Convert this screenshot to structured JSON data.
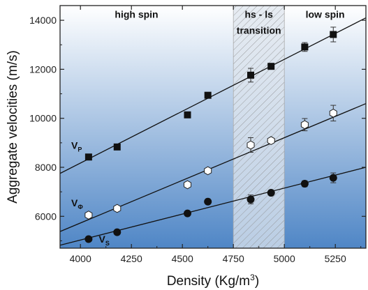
{
  "chart_data": {
    "type": "scatter",
    "xlabel": "Density (Kg/m",
    "xlabel_sup": "3",
    "xlabel_end": ")",
    "ylabel": "Aggregate velocities (m/s)",
    "xlim": [
      3900,
      5400
    ],
    "ylim": [
      4700,
      14600
    ],
    "x_ticks": [
      4000,
      4250,
      4500,
      4750,
      5000,
      5250
    ],
    "y_ticks": [
      6000,
      8000,
      10000,
      12000,
      14000
    ],
    "grid": false,
    "background_gradient": [
      "#ffffff",
      "#4f86c6"
    ],
    "transition_band": [
      4750,
      5000
    ],
    "region_labels": [
      {
        "text": "high spin",
        "x": 4275,
        "y": 14100
      },
      {
        "text": "hs - ls",
        "x": 4875,
        "y": 14100
      },
      {
        "text": "transition",
        "x": 4875,
        "y": 13450
      },
      {
        "text": "low spin",
        "x": 5200,
        "y": 14100
      }
    ],
    "series": [
      {
        "label": "V",
        "label_sub": "P",
        "label_pos": [
          3955,
          8750
        ],
        "marker": "square",
        "fit": [
          [
            3900,
            7750
          ],
          [
            5400,
            14100
          ]
        ],
        "points": [
          {
            "x": 4040,
            "y": 8420,
            "err": 0
          },
          {
            "x": 4180,
            "y": 8830,
            "err": 0
          },
          {
            "x": 4525,
            "y": 10140,
            "err": 0
          },
          {
            "x": 4625,
            "y": 10940,
            "err": 0
          },
          {
            "x": 4835,
            "y": 11760,
            "err": 280
          },
          {
            "x": 4935,
            "y": 12120,
            "err": 0
          },
          {
            "x": 5100,
            "y": 12910,
            "err": 180
          },
          {
            "x": 5240,
            "y": 13420,
            "err": 300
          }
        ]
      },
      {
        "label": "V",
        "label_sub": "Φ",
        "label_pos": [
          3955,
          6400
        ],
        "marker": "hexagon",
        "fit": [
          [
            3900,
            5380
          ],
          [
            5400,
            10600
          ]
        ],
        "points": [
          {
            "x": 4040,
            "y": 6050,
            "err": 0
          },
          {
            "x": 4180,
            "y": 6320,
            "err": 0
          },
          {
            "x": 4525,
            "y": 7290,
            "err": 0
          },
          {
            "x": 4625,
            "y": 7860,
            "err": 0
          },
          {
            "x": 4835,
            "y": 8910,
            "err": 300
          },
          {
            "x": 4935,
            "y": 9090,
            "err": 0
          },
          {
            "x": 5100,
            "y": 9740,
            "err": 250
          },
          {
            "x": 5240,
            "y": 10210,
            "err": 320
          }
        ]
      },
      {
        "label": "V",
        "label_sub": "S",
        "label_pos": [
          4090,
          4930
        ],
        "marker": "circle",
        "fit": [
          [
            3900,
            4820
          ],
          [
            5400,
            8000
          ]
        ],
        "points": [
          {
            "x": 4040,
            "y": 5070,
            "err": 0
          },
          {
            "x": 4180,
            "y": 5350,
            "err": 0
          },
          {
            "x": 4525,
            "y": 6120,
            "err": 0
          },
          {
            "x": 4625,
            "y": 6600,
            "err": 0
          },
          {
            "x": 4835,
            "y": 6690,
            "err": 180
          },
          {
            "x": 4935,
            "y": 6960,
            "err": 0
          },
          {
            "x": 5100,
            "y": 7330,
            "err": 120
          },
          {
            "x": 5240,
            "y": 7570,
            "err": 200
          }
        ]
      }
    ]
  }
}
